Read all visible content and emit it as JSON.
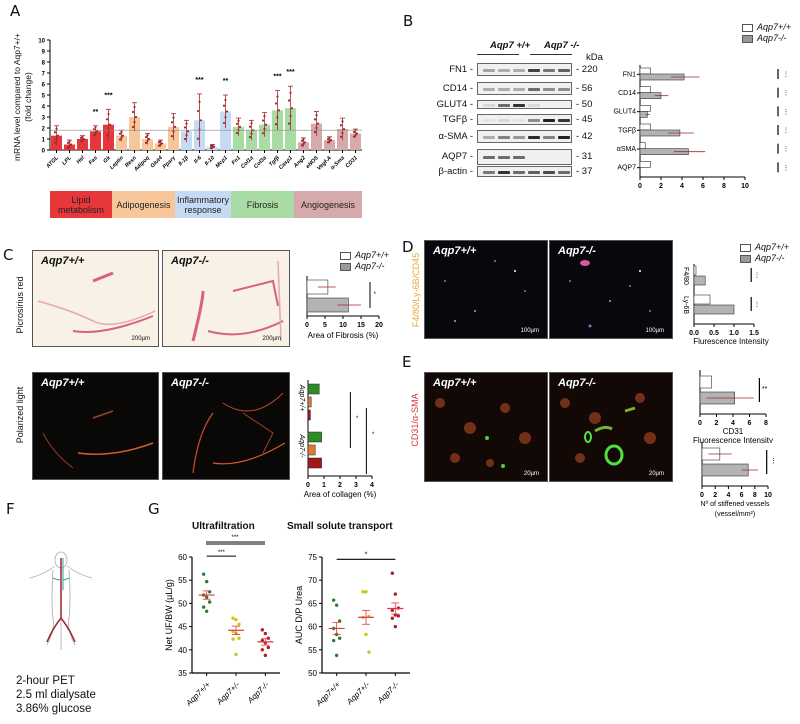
{
  "panels": {
    "A": {
      "label": "A"
    },
    "B": {
      "label": "B"
    },
    "C": {
      "label": "C"
    },
    "D": {
      "label": "D"
    },
    "E": {
      "label": "E"
    },
    "F": {
      "label": "F"
    },
    "G": {
      "label": "G"
    }
  },
  "colors": {
    "lipid": "#e8373b",
    "adipogenesis": "#f7c79b",
    "inflammatory": "#c5dbf3",
    "fibrosis": "#a8dca4",
    "angiogenesis": "#d6a9ab",
    "point": "#a0282c",
    "wt_green": "#2e7d32",
    "het_yellow": "#d4c21a",
    "ko_red": "#b0202a",
    "mean_line": "#e0393e",
    "gray_bar": "#b3b3b3"
  },
  "panelA": {
    "ylabel_line1": "mRNA level compared to Aqp7+/+",
    "ylabel_line2": "(fold change)",
    "categories": [
      {
        "label": "Lipid metabolism",
        "line1": "Lipid",
        "line2": "metabolism"
      },
      {
        "label": "Adipogenesis",
        "line1": "Adipogenesis",
        "line2": ""
      },
      {
        "label": "Inflammatory response",
        "line1": "Inflammatory",
        "line2": "response"
      },
      {
        "label": "Fibrosis",
        "line1": "Fibrosis",
        "line2": ""
      },
      {
        "label": "Angiogenesis",
        "line1": "Angiogenesis",
        "line2": ""
      }
    ]
  },
  "panelB": {
    "blot_header_wt": "Aqp7 +/+",
    "blot_header_ko": "Aqp7 -/-",
    "kda_label": "kDa",
    "rows": [
      {
        "protein": "FN1",
        "kda": "220"
      },
      {
        "protein": "CD14",
        "kda": "56"
      },
      {
        "protein": "GLUT4",
        "kda": "50"
      },
      {
        "protein": "TGFβ",
        "kda": "45"
      },
      {
        "protein": "α-SMA",
        "kda": "42"
      },
      {
        "protein": "AQP7",
        "kda": "31"
      },
      {
        "protein": "β-actin",
        "kda": "37"
      }
    ],
    "legend_wt": "Aqp7+/+",
    "legend_ko": "Aqp7-/-"
  },
  "panelC": {
    "row1_label": "Picrosirius red",
    "row2_label": "Polarized light",
    "img_wt": "Aqp7+/+",
    "img_ko": "Aqp7-/-",
    "scalebar": "200µm",
    "legend_wt": "Aqp7+/+",
    "legend_ko": "Aqp7-/-",
    "fibrosis_xlabel": "Area of Fibrosis (%)",
    "collagen_xlabel": "Area of collagen (%)",
    "collagen_group_wt": "Aqp7+/+",
    "collagen_group_ko": "Aqp7-/-"
  },
  "panelD": {
    "stain_label": "F4/80/Ly-6B/CD45",
    "img_wt": "Aqp7+/+",
    "img_ko": "Aqp7-/-",
    "scalebar": "100µm",
    "legend_wt": "Aqp7+/+",
    "legend_ko": "Aqp7-/-",
    "xlabel": "Flurescence Intensity"
  },
  "panelE": {
    "stain_label": "CD31/α-SMA",
    "img_wt": "Aqp7+/+",
    "img_ko": "Aqp7-/-",
    "scalebar": "20µm",
    "cd31_xlabel1": "CD31",
    "cd31_xlabel2": "Fluorescence Intensity",
    "vessels_xlabel1": "Nº of stiffened vessels",
    "vessels_xlabel2": "(vessel/mm²)"
  },
  "panelF": {
    "line1": "2-hour PET",
    "line2": "2.5 ml dialysate",
    "line3": "3.86% glucose"
  },
  "panelG": {
    "uf_title": "Ultrafiltration",
    "sst_title": "Small solute transport",
    "uf_ylabel": "Net UF/BW (µL/g)",
    "sst_ylabel": "AUC D/P Urea",
    "groups": [
      "Aqp7+/+",
      "Aqp7+/-",
      "Aqp7-/-"
    ]
  },
  "chart_data": [
    {
      "id": "A",
      "type": "bar",
      "title": "",
      "xlabel": "",
      "ylabel": "mRNA level compared to Aqp7+/+ (fold change)",
      "ylim": [
        0,
        10
      ],
      "yticks": [
        0,
        1,
        2,
        3,
        4,
        5,
        6,
        7,
        8,
        9,
        10
      ],
      "reference_line": 1.8,
      "categories": [
        "ATGL",
        "LPL",
        "Hsl",
        "Fas",
        "Gk",
        "Leptin",
        "Resn",
        "Adipoq",
        "Glut4",
        "Pparγ",
        "Il-1β",
        "Il-6",
        "Il-10",
        "Mcp1",
        "Fn1",
        "Col1a",
        "Col3a",
        "Tgfβ",
        "Casp1",
        "Ang2",
        "eNOS",
        "Vegf-A",
        "α-Sma",
        "CD31"
      ],
      "groups": [
        "lipid",
        "lipid",
        "lipid",
        "lipid",
        "lipid",
        "adipogenesis",
        "adipogenesis",
        "adipogenesis",
        "adipogenesis",
        "adipogenesis",
        "inflammatory",
        "inflammatory",
        "inflammatory",
        "inflammatory",
        "fibrosis",
        "fibrosis",
        "fibrosis",
        "fibrosis",
        "fibrosis",
        "angiogenesis",
        "angiogenesis",
        "angiogenesis",
        "angiogenesis",
        "angiogenesis"
      ],
      "values": [
        1.3,
        0.5,
        1.0,
        1.7,
        2.3,
        1.3,
        3.0,
        1.0,
        0.6,
        2.1,
        1.7,
        2.7,
        0.3,
        3.5,
        2.1,
        1.8,
        2.3,
        3.6,
        3.8,
        0.7,
        2.4,
        0.9,
        1.9,
        1.5
      ],
      "errors": [
        0.9,
        0.4,
        0.3,
        0.5,
        1.4,
        0.5,
        1.3,
        0.5,
        0.3,
        1.2,
        1.0,
        2.4,
        0.2,
        1.5,
        0.8,
        0.9,
        1.1,
        1.8,
        2.0,
        0.4,
        1.1,
        0.3,
        1.0,
        0.4
      ],
      "significance": {
        "Fas": "**",
        "Gk": "***",
        "Il-6": "***",
        "Mcp1": "**",
        "Tgfβ": "***",
        "Casp1": "***"
      }
    },
    {
      "id": "B-quant",
      "type": "bar",
      "orientation": "horizontal",
      "xlim": [
        0,
        10
      ],
      "xticks": [
        0,
        2,
        4,
        6,
        8,
        10
      ],
      "categories": [
        "FN1",
        "CD14",
        "GLUT4",
        "TGFβ",
        "αSMA",
        "AQP7"
      ],
      "series": [
        {
          "name": "Aqp7+/+",
          "values": [
            1.0,
            1.0,
            1.0,
            1.0,
            0.5,
            1.0
          ]
        },
        {
          "name": "Aqp7-/-",
          "values": [
            4.2,
            2.0,
            0.7,
            3.8,
            4.6,
            0.0
          ]
        }
      ],
      "legend": [
        "Aqp7+/+",
        "Aqp7-/-"
      ]
    },
    {
      "id": "C-fibrosis",
      "type": "bar",
      "orientation": "horizontal",
      "xlabel": "Area of Fibrosis (%)",
      "xlim": [
        0,
        20
      ],
      "xticks": [
        0,
        5,
        10,
        15,
        20
      ],
      "series": [
        {
          "name": "Aqp7+/+",
          "values": [
            5.8
          ]
        },
        {
          "name": "Aqp7-/-",
          "values": [
            11.5
          ]
        }
      ],
      "significance": "*"
    },
    {
      "id": "C-collagen",
      "type": "bar",
      "orientation": "horizontal",
      "xlabel": "Area of collagen (%)",
      "xlim": [
        0,
        4
      ],
      "xticks": [
        0,
        1,
        2,
        3,
        4
      ],
      "categories": [
        "Aqp7+/+",
        "Aqp7-/-"
      ],
      "series": [
        {
          "name": "green",
          "values": [
            0.7,
            0.85
          ]
        },
        {
          "name": "orange",
          "values": [
            0.2,
            0.45
          ]
        },
        {
          "name": "red",
          "values": [
            0.15,
            0.85
          ]
        }
      ],
      "significance": [
        "*",
        "*"
      ]
    },
    {
      "id": "D",
      "type": "bar",
      "orientation": "horizontal",
      "xlabel": "Flurescence Intensity",
      "xlim": [
        0,
        1.5
      ],
      "xticks": [
        0.0,
        0.5,
        1.0,
        1.5
      ],
      "categories": [
        "F4/80",
        "Ly-6B"
      ],
      "series": [
        {
          "name": "Aqp7+/+",
          "values": [
            0.05,
            0.4
          ]
        },
        {
          "name": "Aqp7-/-",
          "values": [
            0.28,
            1.0
          ]
        }
      ],
      "significance": [
        "***",
        "***"
      ]
    },
    {
      "id": "E-CD31",
      "type": "bar",
      "orientation": "horizontal",
      "xlabel": "CD31 Fluorescence Intensity",
      "xlim": [
        0,
        8
      ],
      "xticks": [
        0,
        2,
        4,
        6,
        8
      ],
      "series": [
        {
          "name": "Aqp7+/+",
          "values": [
            1.4
          ]
        },
        {
          "name": "Aqp7-/-",
          "values": [
            4.2
          ]
        }
      ],
      "significance": "**"
    },
    {
      "id": "E-vessels",
      "type": "bar",
      "orientation": "horizontal",
      "xlabel": "Nº of stiffened vessels (vessel/mm²)",
      "xlim": [
        0,
        10
      ],
      "xticks": [
        0,
        2,
        4,
        6,
        8,
        10
      ],
      "series": [
        {
          "name": "Aqp7+/+",
          "values": [
            2.7
          ]
        },
        {
          "name": "Aqp7-/-",
          "values": [
            7.0
          ]
        }
      ],
      "significance": "***"
    },
    {
      "id": "G-ultrafiltration",
      "type": "scatter",
      "title": "Ultrafiltration",
      "ylabel": "Net UF/BW (µL/g)",
      "ylim": [
        35,
        60
      ],
      "yticks": [
        35,
        40,
        45,
        50,
        55,
        60
      ],
      "categories": [
        "Aqp7+/+",
        "Aqp7+/-",
        "Aqp7-/-"
      ],
      "points": [
        [
          56.3,
          54.7,
          52.5,
          51.8,
          51.3,
          50.3,
          49.2,
          48.3
        ],
        [
          46.8,
          46.5,
          45.5,
          44.0,
          43.5,
          42.5,
          42.3,
          39.0
        ],
        [
          44.3,
          43.5,
          42.5,
          42.0,
          41.5,
          40.5,
          40.0,
          38.8
        ]
      ],
      "means": [
        51.8,
        44.2,
        41.7
      ],
      "sem": [
        0.9,
        0.9,
        0.7
      ],
      "significance": [
        {
          "pair": [
            "Aqp7+/+",
            "Aqp7+/-"
          ],
          "label": "***"
        },
        {
          "pair": [
            "Aqp7+/+",
            "Aqp7-/-"
          ],
          "label": "***"
        }
      ]
    },
    {
      "id": "G-small-solute",
      "type": "scatter",
      "title": "Small solute transport",
      "ylabel": "AUC D/P Urea",
      "ylim": [
        50,
        75
      ],
      "yticks": [
        50,
        55,
        60,
        65,
        70,
        75
      ],
      "categories": [
        "Aqp7+/+",
        "Aqp7+/-",
        "Aqp7-/-"
      ],
      "points": [
        [
          65.7,
          64.6,
          61.2,
          59.6,
          58.3,
          57.5,
          57.0,
          53.8
        ],
        [
          67.5,
          67.5,
          62.2,
          62.0,
          58.3,
          54.5
        ],
        [
          71.5,
          67.0,
          64.0,
          63.5,
          62.5,
          62.3,
          61.8,
          60.0
        ]
      ],
      "means": [
        59.6,
        62.0,
        63.9
      ],
      "sem": [
        1.3,
        1.5,
        1.2
      ],
      "significance": [
        {
          "pair": [
            "Aqp7+/+",
            "Aqp7-/-"
          ],
          "label": "*"
        }
      ]
    }
  ]
}
